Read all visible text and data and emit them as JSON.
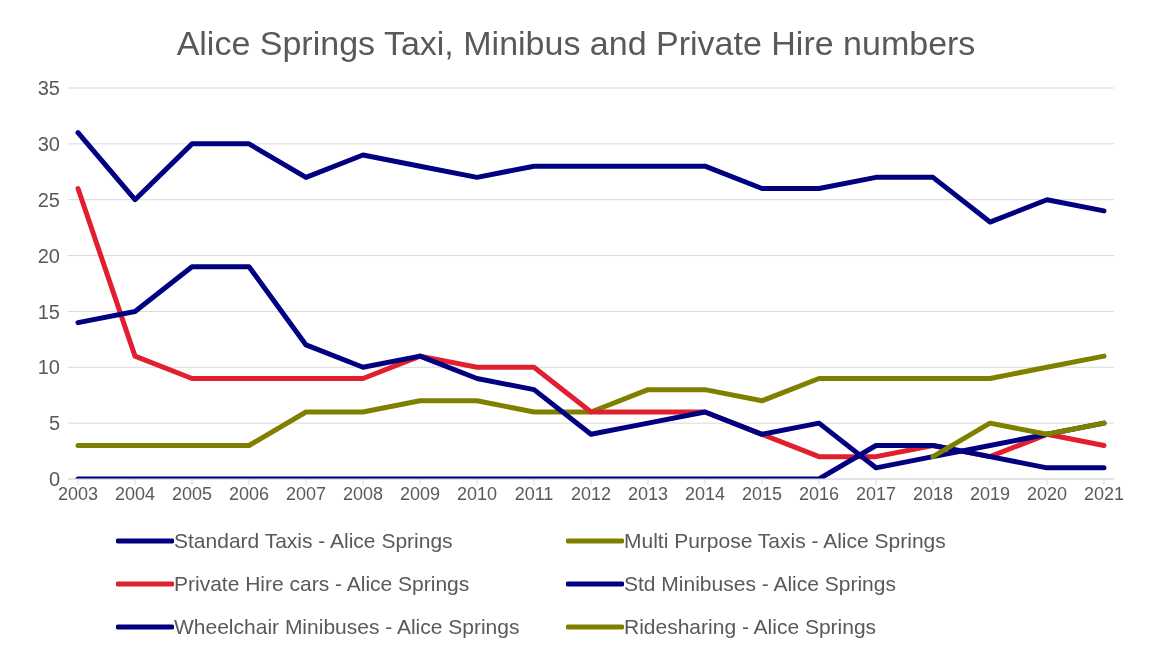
{
  "chart_data": {
    "type": "line",
    "title": "Alice Springs Taxi, Minibus and Private Hire numbers",
    "categories": [
      "2003",
      "2004",
      "2005",
      "2006",
      "2007",
      "2008",
      "2009",
      "2010",
      "2011",
      "2012",
      "2013",
      "2014",
      "2015",
      "2016",
      "2017",
      "2018",
      "2019",
      "2020",
      "2021"
    ],
    "series": [
      {
        "name": "Standard Taxis - Alice Springs",
        "color": "#000080",
        "values": [
          31,
          25,
          30,
          30,
          27,
          29,
          28,
          27,
          28,
          28,
          28,
          28,
          26,
          26,
          27,
          27,
          23,
          25,
          24
        ]
      },
      {
        "name": "Multi Purpose Taxis - Alice Springs",
        "color": "#808000",
        "values": [
          3,
          3,
          3,
          3,
          6,
          6,
          7,
          7,
          6,
          6,
          8,
          8,
          7,
          9,
          9,
          9,
          9,
          10,
          11
        ]
      },
      {
        "name": "Private Hire cars - Alice Springs",
        "color": "#e0202e",
        "values": [
          26,
          11,
          9,
          9,
          9,
          9,
          11,
          10,
          10,
          6,
          6,
          6,
          4,
          2,
          2,
          3,
          2,
          4,
          3
        ]
      },
      {
        "name": "Std Minibuses - Alice Springs",
        "color": "#000080",
        "values": [
          14,
          15,
          19,
          19,
          12,
          10,
          11,
          9,
          8,
          4,
          5,
          6,
          4,
          5,
          1,
          2,
          3,
          4,
          5
        ]
      },
      {
        "name": "Wheelchair Minibuses - Alice Springs",
        "color": "#000080",
        "values": [
          0,
          0,
          0,
          0,
          0,
          0,
          0,
          0,
          0,
          0,
          0,
          0,
          0,
          0,
          3,
          3,
          2,
          1,
          1
        ]
      },
      {
        "name": "Ridesharing - Alice Springs",
        "color": "#808000",
        "values": [
          null,
          null,
          null,
          null,
          null,
          null,
          null,
          null,
          null,
          null,
          null,
          null,
          null,
          null,
          null,
          2,
          5,
          4,
          5
        ]
      }
    ],
    "ylim": [
      0,
      35
    ],
    "yticks": [
      0,
      5,
      10,
      15,
      20,
      25,
      30,
      35
    ],
    "grid": "y",
    "legend": "bottom",
    "marker": "none",
    "line_style": "solid"
  }
}
